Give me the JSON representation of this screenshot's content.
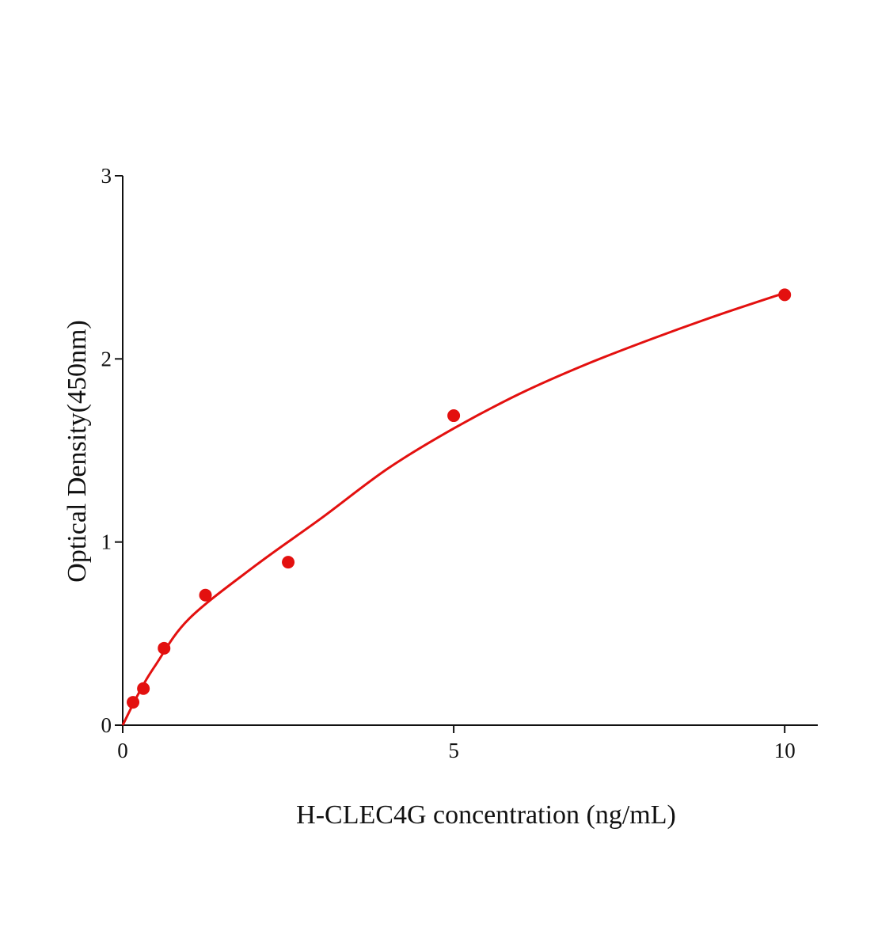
{
  "chart_data": {
    "type": "scatter",
    "x_label": "H-CLEC4G concentration (ng/mL)",
    "y_label": "Optical Density(450nm)",
    "xlim": [
      0,
      10.5
    ],
    "ylim": [
      0,
      3
    ],
    "xticks": [
      0,
      5,
      10
    ],
    "yticks": [
      0,
      1,
      2,
      3
    ],
    "series": [
      {
        "type": "scatter",
        "color": "#e3100f",
        "x": [
          0.156,
          0.3125,
          0.625,
          1.25,
          2.5,
          5,
          10
        ],
        "values": [
          0.125,
          0.2,
          0.42,
          0.71,
          0.89,
          1.69,
          2.35
        ]
      },
      {
        "type": "line",
        "color": "#e3100f",
        "x": [
          0,
          0.25,
          0.5,
          1,
          2,
          3,
          4,
          5,
          6,
          7,
          8,
          9,
          10
        ],
        "values": [
          0,
          0.18,
          0.33,
          0.58,
          0.87,
          1.13,
          1.4,
          1.62,
          1.81,
          1.97,
          2.11,
          2.24,
          2.36
        ]
      }
    ]
  }
}
